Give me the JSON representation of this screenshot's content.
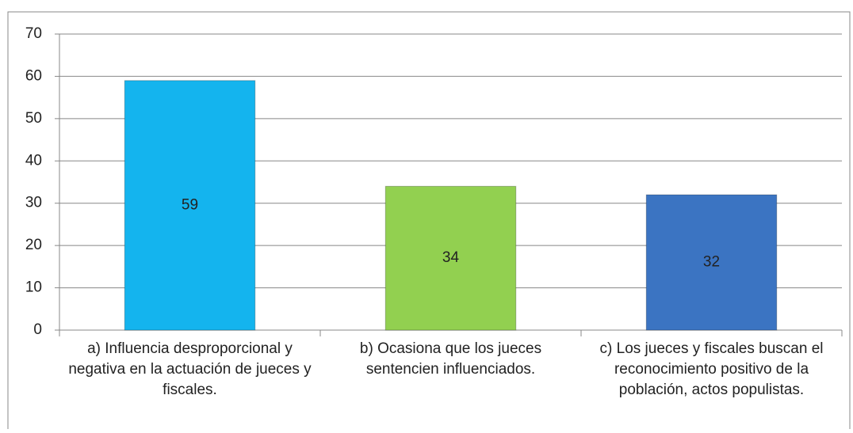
{
  "chart_data": {
    "type": "bar",
    "categories": [
      "a) Influencia desproporcional y negativa en la actuación de jueces y fiscales.",
      "b) Ocasiona que los jueces sentencien influenciados.",
      "c) Los jueces y fiscales buscan el reconocimiento positivo de la población, actos populistas."
    ],
    "values": [
      59,
      34,
      32
    ],
    "colors": [
      "#14b4ee",
      "#92d050",
      "#3b74c2"
    ],
    "ylim": [
      0,
      70
    ],
    "yticks": [
      0,
      10,
      20,
      30,
      40,
      50,
      60,
      70
    ],
    "grid": true
  }
}
